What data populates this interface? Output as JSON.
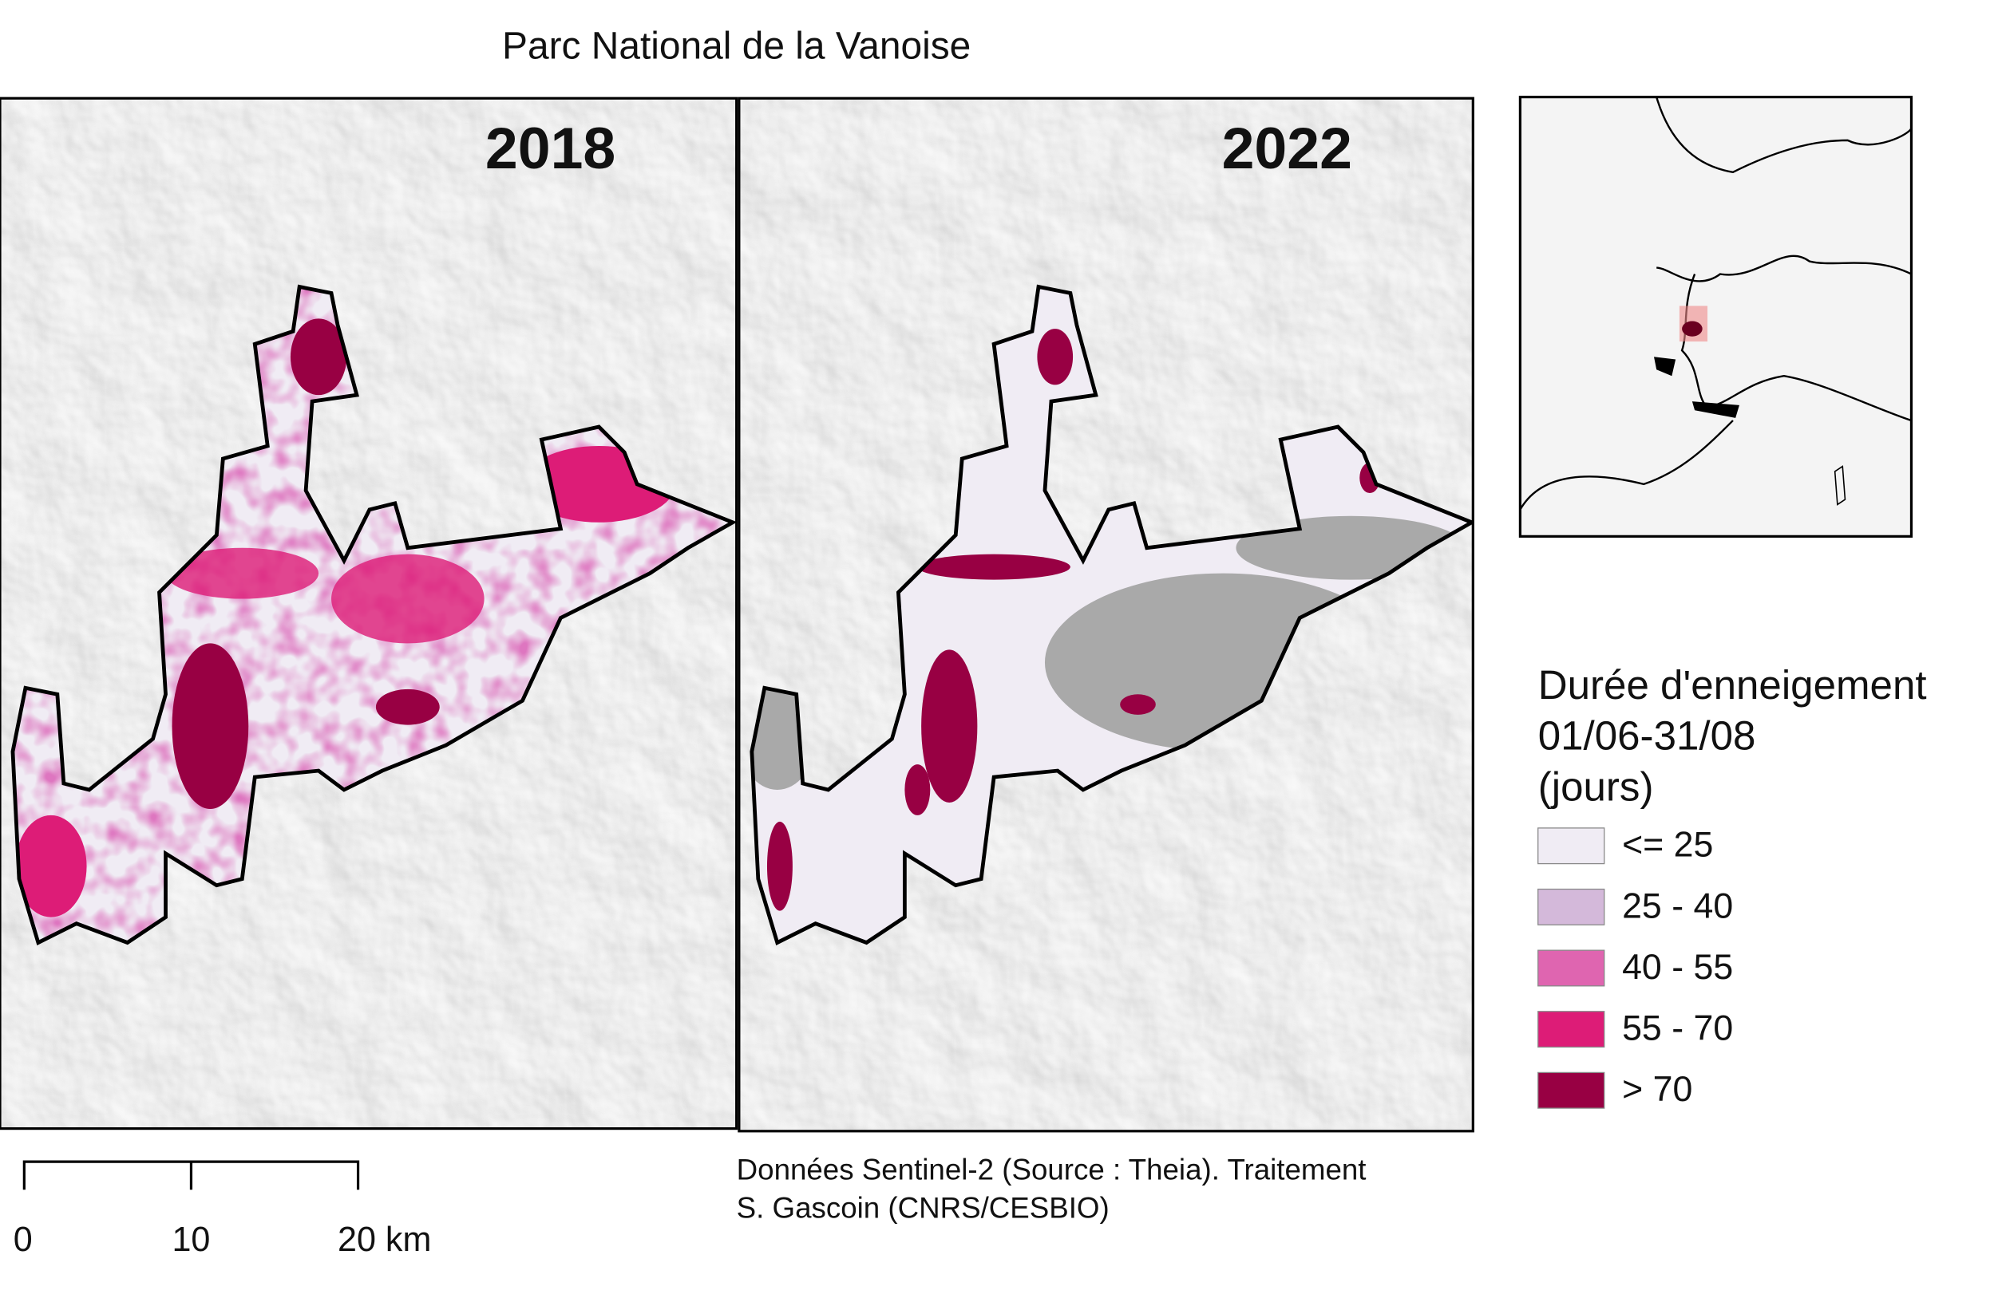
{
  "header": {
    "title": "Parc National de la Vanoise"
  },
  "panels": [
    {
      "label": "2018"
    },
    {
      "label": "2022"
    }
  ],
  "legend": {
    "title_lines": [
      "Durée d'enneigement",
      "01/06-31/08",
      "(jours)"
    ],
    "items": [
      {
        "label": "<= 25",
        "color": "#f0ecf4"
      },
      {
        "label": "25 - 40",
        "color": "#d4b9da"
      },
      {
        "label": "40 - 55",
        "color": "#df65b0"
      },
      {
        "label": "55 - 70",
        "color": "#dd1c77"
      },
      {
        "label": "> 70",
        "color": "#980043"
      }
    ]
  },
  "scale_bar": {
    "labels": [
      "0",
      "10",
      "20 km"
    ]
  },
  "source": {
    "lines": [
      "Données Sentinel-2 (Source : Theia). Traitement",
      "S. Gascoin (CNRS/CESBIO)"
    ]
  }
}
